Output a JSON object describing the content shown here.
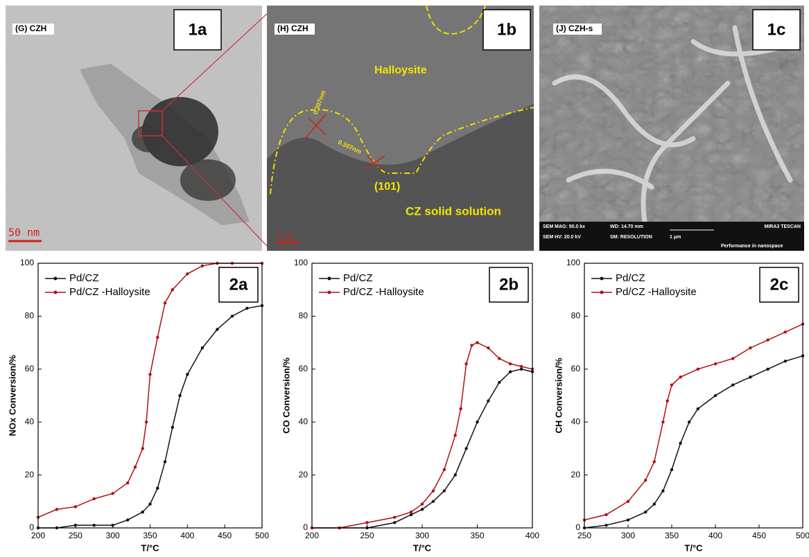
{
  "micrographs": [
    {
      "label": "1a",
      "tag": "(G) CZH",
      "scale": "50 nm"
    },
    {
      "label": "1b",
      "tag": "(H) CZH",
      "annotations": [
        "Halloysite",
        "0.307nm",
        "0.307nm",
        "(101)",
        "CZ solid solution"
      ],
      "scale": "5 nm"
    },
    {
      "label": "1c",
      "tag": "(J) CZH-s",
      "info": [
        "SEM MAG: 50.0 kx",
        "WD: 14.70 mm",
        "MIRA3 TESCAN",
        "SEM HV: 20.0 kV",
        "SM: RESOLUTION",
        "1 μm",
        "Performance in nanospace"
      ]
    }
  ],
  "chart_data": [
    {
      "type": "line",
      "panel_label": "2a",
      "xlabel": "T/°C",
      "ylabel": "NOx Conversion/%",
      "xlim": [
        200,
        500
      ],
      "xticks": [
        200,
        250,
        300,
        350,
        400,
        450,
        500
      ],
      "ylim": [
        0,
        100
      ],
      "yticks": [
        0,
        20,
        40,
        60,
        80,
        100
      ],
      "series": [
        {
          "name": "Pd/CZ",
          "color": "#111111",
          "x": [
            200,
            225,
            250,
            275,
            300,
            320,
            340,
            350,
            360,
            370,
            380,
            390,
            400,
            420,
            440,
            460,
            480,
            500
          ],
          "values": [
            0,
            0,
            1,
            1,
            1,
            3,
            6,
            9,
            15,
            25,
            38,
            50,
            58,
            68,
            75,
            80,
            83,
            84
          ]
        },
        {
          "name": "Pd/CZ -Halloysite",
          "color": "#b01010",
          "x": [
            200,
            225,
            250,
            275,
            300,
            320,
            330,
            340,
            345,
            350,
            360,
            370,
            380,
            400,
            420,
            440,
            460,
            500
          ],
          "values": [
            4,
            7,
            8,
            11,
            13,
            17,
            23,
            30,
            40,
            58,
            72,
            85,
            90,
            96,
            99,
            100,
            100,
            100
          ]
        }
      ]
    },
    {
      "type": "line",
      "panel_label": "2b",
      "xlabel": "T/°C",
      "ylabel": "CO Conversion/%",
      "xlim": [
        200,
        400
      ],
      "xticks": [
        200,
        250,
        300,
        350,
        400
      ],
      "ylim": [
        0,
        100
      ],
      "yticks": [
        0,
        20,
        40,
        60,
        80,
        100
      ],
      "series": [
        {
          "name": "Pd/CZ",
          "color": "#111111",
          "x": [
            200,
            225,
            250,
            275,
            290,
            300,
            310,
            320,
            330,
            340,
            350,
            360,
            370,
            380,
            390,
            400
          ],
          "values": [
            0,
            0,
            0,
            2,
            5,
            7,
            10,
            14,
            20,
            30,
            40,
            48,
            55,
            59,
            60,
            59
          ]
        },
        {
          "name": "Pd/CZ -Halloysite",
          "color": "#b01010",
          "x": [
            200,
            225,
            250,
            275,
            290,
            300,
            310,
            320,
            330,
            335,
            340,
            345,
            350,
            360,
            370,
            380,
            390,
            400
          ],
          "values": [
            0,
            0,
            2,
            4,
            6,
            9,
            14,
            22,
            35,
            45,
            62,
            69,
            70,
            68,
            64,
            62,
            61,
            60
          ]
        }
      ]
    },
    {
      "type": "line",
      "panel_label": "2c",
      "xlabel": "T/°C",
      "ylabel": "CH Conversion/%",
      "xlim": [
        250,
        500
      ],
      "xticks": [
        250,
        300,
        350,
        400,
        450,
        500
      ],
      "ylim": [
        0,
        100
      ],
      "yticks": [
        0,
        20,
        40,
        60,
        80,
        100
      ],
      "series": [
        {
          "name": "Pd/CZ",
          "color": "#111111",
          "x": [
            250,
            275,
            300,
            320,
            330,
            340,
            350,
            360,
            370,
            380,
            400,
            420,
            440,
            460,
            480,
            500
          ],
          "values": [
            0,
            1,
            3,
            6,
            9,
            14,
            22,
            32,
            40,
            45,
            50,
            54,
            57,
            60,
            63,
            65
          ]
        },
        {
          "name": "Pd/CZ -Halloysite",
          "color": "#b01010",
          "x": [
            250,
            275,
            300,
            320,
            330,
            340,
            345,
            350,
            360,
            380,
            400,
            420,
            440,
            460,
            480,
            500
          ],
          "values": [
            3,
            5,
            10,
            18,
            25,
            40,
            48,
            54,
            57,
            60,
            62,
            64,
            68,
            71,
            74,
            77
          ]
        }
      ]
    }
  ]
}
